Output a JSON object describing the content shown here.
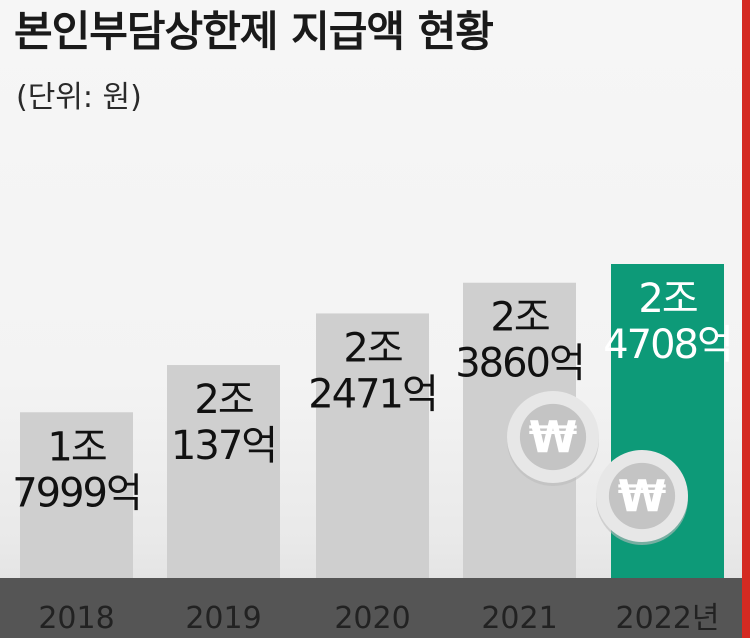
{
  "header": {
    "title": "본인부담상한제 지급액 현황",
    "unit": "(단위: 원)"
  },
  "coin_symbol": "₩",
  "colors": {
    "bar": "#cfcfcf",
    "highlight": "#0d9a78",
    "axis_band": "#555555",
    "text": "#111111",
    "highlight_text": "#ffffff"
  },
  "chart_data": {
    "type": "bar",
    "title": "본인부담상한제 지급액 현황",
    "unit": "(단위: 원)",
    "categories": [
      "2018",
      "2019",
      "2020",
      "2021",
      "2022년"
    ],
    "values": [
      1.7999,
      2.0137,
      2.2471,
      2.386,
      2.4708
    ],
    "value_unit": "조 원",
    "data_labels": [
      [
        "1조",
        "7999억"
      ],
      [
        "2조",
        "137억"
      ],
      [
        "2조",
        "2471억"
      ],
      [
        "2조",
        "3860억"
      ],
      [
        "2조",
        "4708억"
      ]
    ],
    "highlight_index": 4,
    "grid": false,
    "legend": "none"
  }
}
